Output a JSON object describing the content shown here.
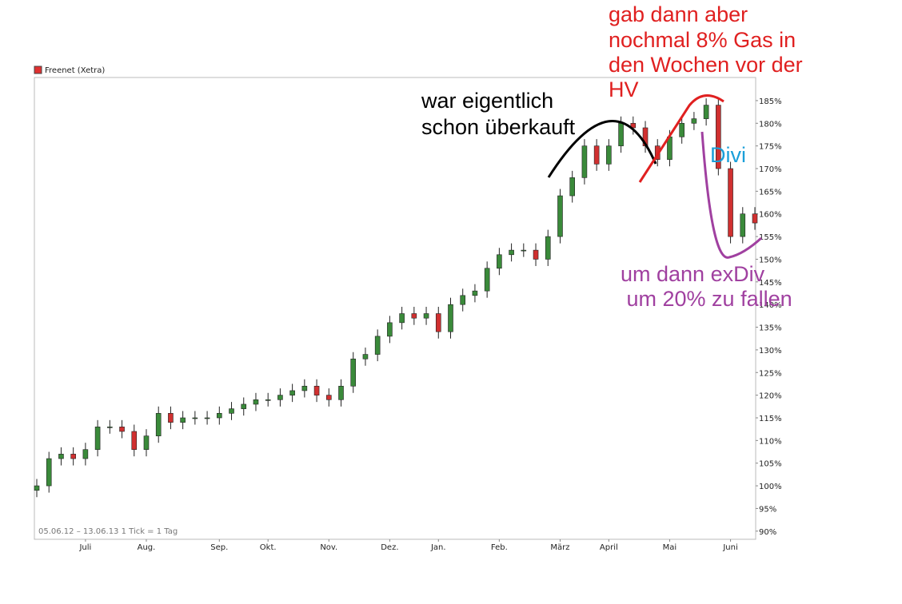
{
  "chart_data": {
    "type": "candlestick",
    "legend": "Freenet (Xetra)",
    "legend_color": "#e03030",
    "info": "05.06.12 – 13.06.13   1 Tick = 1 Tag",
    "categories": [
      null,
      null,
      null,
      null,
      "Juli",
      null,
      null,
      null,
      null,
      "Aug.",
      null,
      null,
      null,
      null,
      null,
      "Sep.",
      null,
      null,
      null,
      "Okt.",
      null,
      null,
      null,
      null,
      "Nov.",
      null,
      null,
      null,
      null,
      "Dez.",
      null,
      null,
      null,
      "Jan.",
      null,
      null,
      null,
      null,
      "Feb.",
      null,
      null,
      null,
      null,
      "März",
      null,
      null,
      null,
      "April",
      null,
      null,
      null,
      null,
      "Mai",
      null,
      null,
      null,
      null,
      "Juni",
      null,
      null
    ],
    "open": [
      99,
      100,
      106,
      107,
      106,
      108,
      113,
      113,
      112,
      108,
      111,
      116,
      114,
      115,
      115,
      115,
      116,
      117,
      118,
      119,
      119,
      120,
      121,
      122,
      120,
      119,
      122,
      128,
      129,
      133,
      136,
      138,
      137,
      138,
      134,
      140,
      142,
      143,
      148,
      151,
      152,
      152,
      150,
      155,
      164,
      168,
      175,
      171,
      175,
      180,
      179,
      175,
      172,
      177,
      180,
      181,
      184,
      170,
      155,
      160
    ],
    "high": [
      101.5,
      107.5,
      108.5,
      108.5,
      109.5,
      114.5,
      114.5,
      114.5,
      113.5,
      112.5,
      117.5,
      117.5,
      116.5,
      116.5,
      116.5,
      117.5,
      118.5,
      119.5,
      120.5,
      120.5,
      121.5,
      122.5,
      123.5,
      123.5,
      121.5,
      123.5,
      129.5,
      130.5,
      134.5,
      137.5,
      139.5,
      139.5,
      139.5,
      139.5,
      141.5,
      143.5,
      144.5,
      149.5,
      152.5,
      153.5,
      153.5,
      153.5,
      156.5,
      165.5,
      169.5,
      176.5,
      176.5,
      176.5,
      181.5,
      181.5,
      180.5,
      176.5,
      178.5,
      181.5,
      182.5,
      185.5,
      185.5,
      171.5,
      161.5,
      161.5
    ],
    "low": [
      97.5,
      98.5,
      104.5,
      104.5,
      104.5,
      106.5,
      111.5,
      110.5,
      106.5,
      106.5,
      109.5,
      112.5,
      112.5,
      113.5,
      113.5,
      113.5,
      114.5,
      115.5,
      116.5,
      117.5,
      117.5,
      118.5,
      119.5,
      118.5,
      117.5,
      117.5,
      120.5,
      126.5,
      127.5,
      131.5,
      134.5,
      135.5,
      135.5,
      132.5,
      132.5,
      138.5,
      140.5,
      141.5,
      146.5,
      149.5,
      150.5,
      148.5,
      148.5,
      153.5,
      162.5,
      166.5,
      169.5,
      169.5,
      173.5,
      177.5,
      173.5,
      170.5,
      170.5,
      175.5,
      178.5,
      179.5,
      168.5,
      153.5,
      153.5,
      156.5
    ],
    "close": [
      100,
      106,
      107,
      106,
      108,
      113,
      113,
      112,
      108,
      111,
      116,
      114,
      115,
      115,
      115,
      116,
      117,
      118,
      119,
      119,
      120,
      121,
      122,
      120,
      119,
      122,
      128,
      129,
      133,
      136,
      138,
      137,
      138,
      134,
      140,
      142,
      143,
      148,
      151,
      152,
      152,
      150,
      155,
      164,
      168,
      175,
      171,
      175,
      180,
      179,
      175,
      172,
      177,
      180,
      181,
      184,
      170,
      155,
      160,
      158
    ],
    "up_color": "#3a8a3a",
    "down_color": "#d03030",
    "ylim": [
      88.2,
      190.1
    ],
    "yticks": [
      {
        "value": 90,
        "label": "90%"
      },
      {
        "value": 95,
        "label": "95%"
      },
      {
        "value": 100,
        "label": "100%"
      },
      {
        "value": 105,
        "label": "105%"
      },
      {
        "value": 110,
        "label": "110%"
      },
      {
        "value": 115,
        "label": "115%"
      },
      {
        "value": 120,
        "label": "120%"
      },
      {
        "value": 125,
        "label": "125%"
      },
      {
        "value": 130,
        "label": "130%"
      },
      {
        "value": 135,
        "label": "135%"
      },
      {
        "value": 140,
        "label": "140%"
      },
      {
        "value": 145,
        "label": "145%"
      },
      {
        "value": 150,
        "label": "150%"
      },
      {
        "value": 155,
        "label": "155%"
      },
      {
        "value": 160,
        "label": "160%"
      },
      {
        "value": 165,
        "label": "165%"
      },
      {
        "value": 170,
        "label": "170%"
      },
      {
        "value": 175,
        "label": "175%"
      },
      {
        "value": 180,
        "label": "180%"
      },
      {
        "value": 185,
        "label": "185%"
      }
    ],
    "annotations": {
      "overbought": [
        "war eigentlich",
        "schon überkauft"
      ],
      "gas": [
        "gab dann aber",
        "nochmal 8% Gas in",
        "den Wochen vor der",
        "HV"
      ],
      "divi": "Divi",
      "fall": [
        "um dann exDiv",
        " um 20% zu fallen"
      ]
    }
  }
}
